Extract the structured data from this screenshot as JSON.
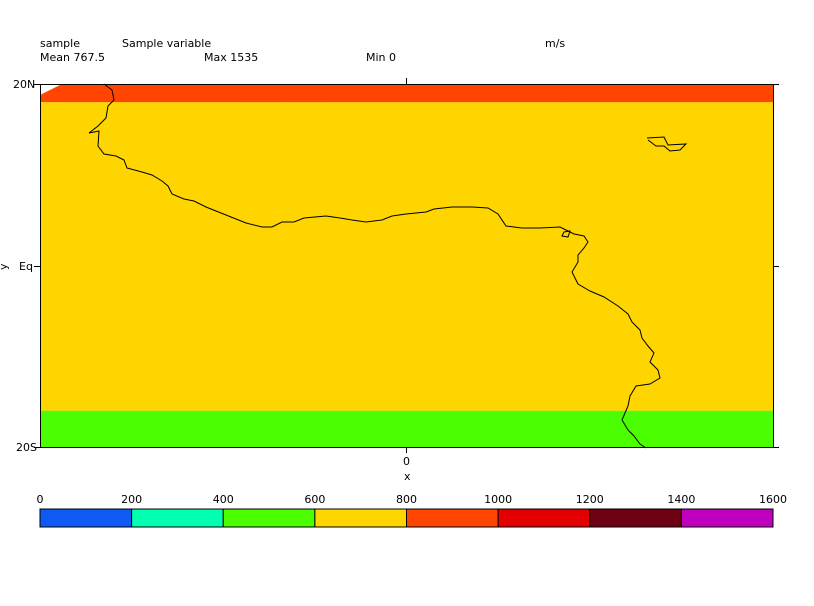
{
  "header": {
    "name": "sample",
    "long_name": "Sample variable",
    "units": "m/s",
    "mean_text": "Mean 767.5",
    "max_text": "Max 1535",
    "min_text": "Min 0"
  },
  "axes": {
    "x_label": "x",
    "y_label": "y",
    "x_ticks": [
      {
        "value": 0,
        "label": "0"
      }
    ],
    "y_ticks": [
      {
        "value": 20,
        "label": "20N"
      },
      {
        "value": 0,
        "label": "Eq"
      },
      {
        "value": -20,
        "label": "20S"
      }
    ],
    "xlim": [
      -20,
      20
    ],
    "ylim": [
      -20,
      20
    ]
  },
  "chart_data": {
    "type": "heatmap",
    "title": "Sample variable",
    "units": "m/s",
    "xlabel": "x",
    "ylabel": "y",
    "bands": [
      {
        "value_range": [
          800,
          1000
        ],
        "color": "#ff4500",
        "lat_from": 18,
        "lat_to": 20
      },
      {
        "value_range": [
          600,
          800
        ],
        "color": "#ffd500",
        "lat_from": -16,
        "lat_to": 18
      },
      {
        "value_range": [
          400,
          600
        ],
        "color": "#4cff00",
        "lat_from": -20,
        "lat_to": -16
      }
    ],
    "colorbar": {
      "levels": [
        0,
        200,
        400,
        600,
        800,
        1000,
        1200,
        1400,
        1600
      ],
      "level_labels": [
        "0",
        "200",
        "400",
        "600",
        "800",
        "1000",
        "1200",
        "1400",
        "1600"
      ],
      "colors": [
        "#0f5af5",
        "#00ffb0",
        "#4cff00",
        "#ffd500",
        "#ff4500",
        "#e20000",
        "#6e0014",
        "#bf00bf"
      ]
    },
    "coastline_color": "#000000"
  }
}
